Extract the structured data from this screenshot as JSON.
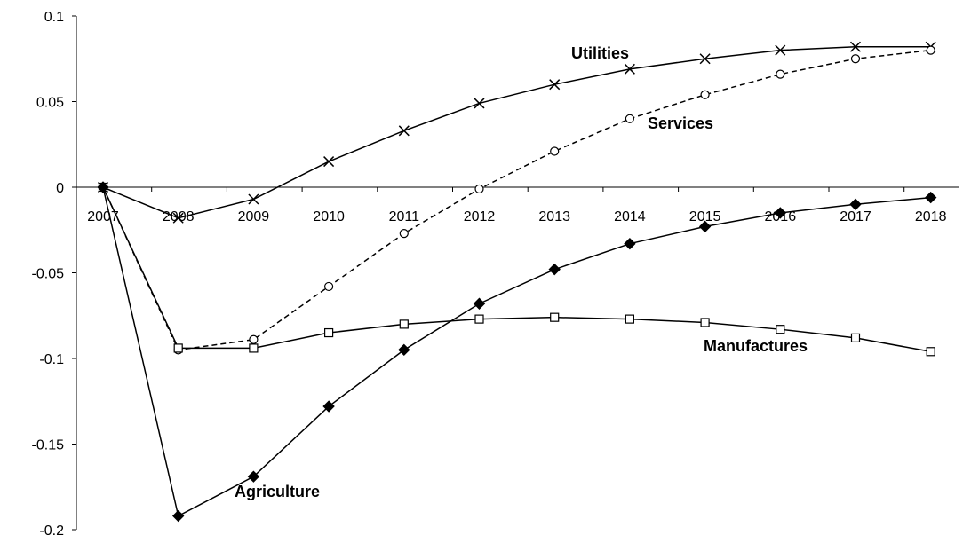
{
  "chart_data": {
    "type": "line",
    "title": "",
    "xlabel": "",
    "ylabel": "",
    "categories": [
      "2007",
      "2008",
      "2009",
      "2010",
      "2011",
      "2012",
      "2013",
      "2014",
      "2015",
      "2016",
      "2017",
      "2018"
    ],
    "ylim": [
      -0.2,
      0.1
    ],
    "yticks": [
      0.1,
      0.05,
      0,
      -0.05,
      -0.1,
      -0.15,
      -0.2
    ],
    "ytick_labels": [
      "0.1",
      "0.05",
      "0",
      "-0.05",
      "-0.1",
      "-0.15",
      "-0.2"
    ],
    "grid": false,
    "legend": "none",
    "series": [
      {
        "name": "Utilities",
        "marker": "x",
        "dash": "solid",
        "values": [
          0,
          -0.018,
          -0.007,
          0.015,
          0.033,
          0.049,
          0.06,
          0.069,
          0.075,
          0.08,
          0.082,
          0.082
        ]
      },
      {
        "name": "Services",
        "marker": "circle",
        "dash": "dashed",
        "values": [
          0,
          -0.095,
          -0.089,
          -0.058,
          -0.027,
          -0.001,
          0.021,
          0.04,
          0.054,
          0.066,
          0.075,
          0.08
        ]
      },
      {
        "name": "Manufactures",
        "marker": "square",
        "dash": "solid",
        "values": [
          0,
          -0.094,
          -0.094,
          -0.085,
          -0.08,
          -0.077,
          -0.076,
          -0.077,
          -0.079,
          -0.083,
          -0.088,
          -0.096
        ]
      },
      {
        "name": "Agriculture",
        "marker": "diamond",
        "dash": "solid",
        "values": [
          0,
          -0.192,
          -0.169,
          -0.128,
          -0.095,
          -0.068,
          -0.048,
          -0.033,
          -0.023,
          -0.015,
          -0.01,
          -0.006
        ]
      }
    ]
  }
}
